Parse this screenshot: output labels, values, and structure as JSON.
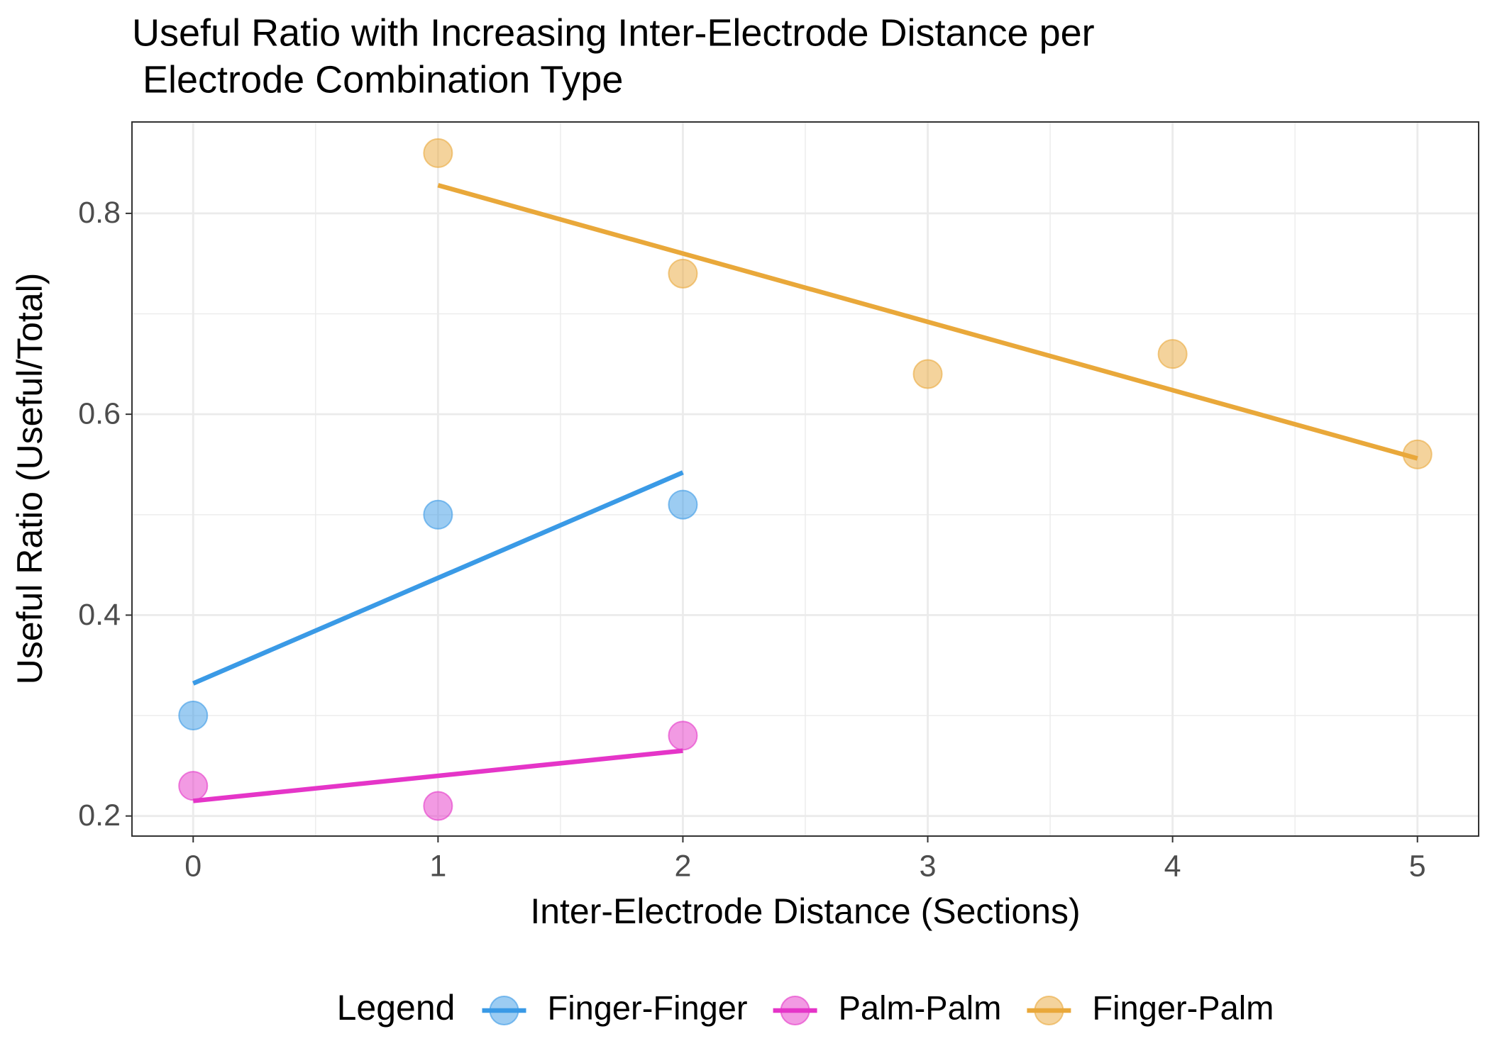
{
  "chart_data": {
    "type": "scatter",
    "title": [
      "Useful Ratio with Increasing Inter-Electrode Distance per",
      " Electrode Combination Type"
    ],
    "x_label": "Inter-Electrode Distance (Sections)",
    "y_label": "Useful Ratio (Useful/Total)",
    "legend_title": "Legend",
    "legend_position": "bottom",
    "grid": true,
    "xlim": [
      -0.25,
      5.25
    ],
    "xticks": [
      0,
      1,
      2,
      3,
      4,
      5
    ],
    "ylim": [
      0.18,
      0.891
    ],
    "yticks": [
      0.2,
      0.4,
      0.6,
      0.8
    ],
    "series": [
      {
        "name": "Finger-Finger",
        "color": "#3a9ae6",
        "x": [
          0,
          1,
          2
        ],
        "values": [
          0.3,
          0.5,
          0.51
        ],
        "fit": {
          "x": [
            0,
            2
          ],
          "values": [
            0.332,
            0.542
          ]
        }
      },
      {
        "name": "Palm-Palm",
        "color": "#e535c8",
        "x": [
          0,
          1,
          2
        ],
        "values": [
          0.23,
          0.21,
          0.28
        ],
        "fit": {
          "x": [
            0,
            2
          ],
          "values": [
            0.215,
            0.265
          ]
        }
      },
      {
        "name": "Finger-Palm",
        "color": "#e9a83a",
        "x": [
          1,
          2,
          3,
          4,
          5
        ],
        "values": [
          0.86,
          0.74,
          0.64,
          0.66,
          0.56
        ],
        "fit": {
          "x": [
            1,
            5
          ],
          "values": [
            0.828,
            0.556
          ]
        }
      }
    ]
  }
}
